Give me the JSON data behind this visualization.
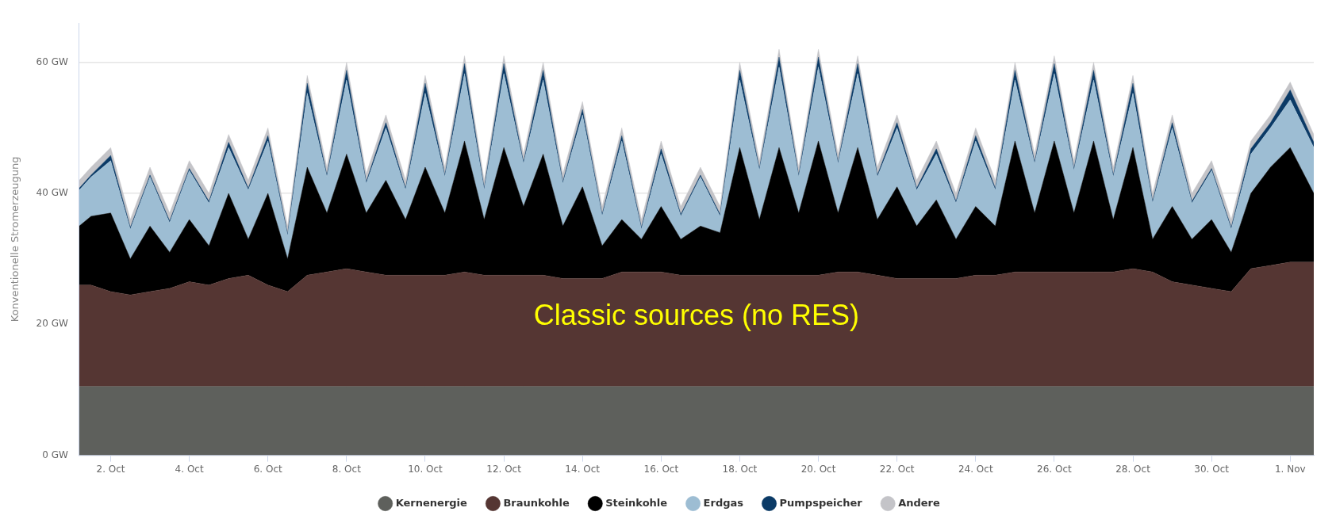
{
  "chart_data": {
    "type": "area",
    "stacked": true,
    "ylabel": "Konventionelle Stromerzeugung",
    "annotations": [
      "Classic sources (no RES)"
    ],
    "x": [
      "--10-01T04:48",
      "--10-01T12:00",
      "--10-02T00:00",
      "--10-02T12:00",
      "--10-03T00:00",
      "--10-03T12:00",
      "--10-04T00:00",
      "--10-04T12:00",
      "--10-05T00:00",
      "--10-05T12:00",
      "--10-06T00:00",
      "--10-06T12:00",
      "--10-07T00:00",
      "--10-07T12:00",
      "--10-08T00:00",
      "--10-08T12:00",
      "--10-09T00:00",
      "--10-09T12:00",
      "--10-10T00:00",
      "--10-10T12:00",
      "--10-11T00:00",
      "--10-11T12:00",
      "--10-12T00:00",
      "--10-12T12:00",
      "--10-13T00:00",
      "--10-13T12:00",
      "--10-14T00:00",
      "--10-14T12:00",
      "--10-15T00:00",
      "--10-15T12:00",
      "--10-16T00:00",
      "--10-16T12:00",
      "--10-17T00:00",
      "--10-17T12:00",
      "--10-18T00:00",
      "--10-18T12:00",
      "--10-19T00:00",
      "--10-19T12:00",
      "--10-20T00:00",
      "--10-20T12:00",
      "--10-21T00:00",
      "--10-21T12:00",
      "--10-22T00:00",
      "--10-22T12:00",
      "--10-23T00:00",
      "--10-23T12:00",
      "--10-24T00:00",
      "--10-24T12:00",
      "--10-25T00:00",
      "--10-25T12:00",
      "--10-26T00:00",
      "--10-26T12:00",
      "--10-27T00:00",
      "--10-27T12:00",
      "--10-28T00:00",
      "--10-28T12:00",
      "--10-29T00:00",
      "--10-29T12:00",
      "--10-30T00:00",
      "--10-30T12:00",
      "--10-31T00:00",
      "--10-31T12:00",
      "--11-01T00:00",
      "--11-01T14:24"
    ],
    "xlim": [
      "--10-01T04:48",
      "--11-01T14:24"
    ],
    "xticks": [
      {
        "value": "--10-02",
        "label": "2. Oct"
      },
      {
        "value": "--10-04",
        "label": "4. Oct"
      },
      {
        "value": "--10-06",
        "label": "6. Oct"
      },
      {
        "value": "--10-08",
        "label": "8. Oct"
      },
      {
        "value": "--10-10",
        "label": "10. Oct"
      },
      {
        "value": "--10-12",
        "label": "12. Oct"
      },
      {
        "value": "--10-14",
        "label": "14. Oct"
      },
      {
        "value": "--10-16",
        "label": "16. Oct"
      },
      {
        "value": "--10-18",
        "label": "18. Oct"
      },
      {
        "value": "--10-20",
        "label": "20. Oct"
      },
      {
        "value": "--10-22",
        "label": "22. Oct"
      },
      {
        "value": "--10-24",
        "label": "24. Oct"
      },
      {
        "value": "--10-26",
        "label": "26. Oct"
      },
      {
        "value": "--10-28",
        "label": "28. Oct"
      },
      {
        "value": "--10-30",
        "label": "30. Oct"
      },
      {
        "value": "--11-01",
        "label": "1. Nov"
      }
    ],
    "ylim": [
      0,
      66
    ],
    "yticks": [
      {
        "value": 0,
        "label": "0 GW"
      },
      {
        "value": 20,
        "label": "20 GW"
      },
      {
        "value": 40,
        "label": "40 GW"
      },
      {
        "value": 60,
        "label": "60 GW"
      }
    ],
    "grid": "y",
    "legend": "bottom",
    "marker": "none",
    "series": [
      {
        "name": "Kernenergie",
        "color": "#5e605c",
        "values": [
          10.5,
          10.5,
          10.5,
          10.5,
          10.5,
          10.5,
          10.5,
          10.5,
          10.5,
          10.5,
          10.5,
          10.5,
          10.5,
          10.5,
          10.5,
          10.5,
          10.5,
          10.5,
          10.5,
          10.5,
          10.5,
          10.5,
          10.5,
          10.5,
          10.5,
          10.5,
          10.5,
          10.5,
          10.5,
          10.5,
          10.5,
          10.5,
          10.5,
          10.5,
          10.5,
          10.5,
          10.5,
          10.5,
          10.5,
          10.5,
          10.5,
          10.5,
          10.5,
          10.5,
          10.5,
          10.5,
          10.5,
          10.5,
          10.5,
          10.5,
          10.5,
          10.5,
          10.5,
          10.5,
          10.5,
          10.5,
          10.5,
          10.5,
          10.5,
          10.5,
          10.5,
          10.5,
          10.5,
          10.5
        ]
      },
      {
        "name": "Braunkohle",
        "color": "#553633",
        "values": [
          15.5,
          15.5,
          14.5,
          14,
          14.5,
          15,
          16,
          15.5,
          16.5,
          17,
          15.5,
          14.5,
          17,
          17.5,
          18,
          17.5,
          17,
          17,
          17,
          17,
          17.5,
          17,
          17,
          17,
          17,
          16.5,
          16.5,
          16.5,
          17.5,
          17.5,
          17.5,
          17,
          17,
          17,
          17,
          17,
          17,
          17,
          17,
          17.5,
          17.5,
          17,
          16.5,
          16.5,
          16.5,
          16.5,
          17,
          17,
          17.5,
          17.5,
          17.5,
          17.5,
          17.5,
          17.5,
          18,
          17.5,
          16,
          15.5,
          15,
          14.5,
          18,
          18.5,
          19,
          19
        ]
      },
      {
        "name": "Steinkohle",
        "color": "#000000",
        "values": [
          9,
          10.5,
          12,
          5.5,
          10,
          5.5,
          9.5,
          6,
          13,
          5.5,
          14,
          5,
          16.5,
          9,
          17.5,
          9,
          14.5,
          8.5,
          16.5,
          9.5,
          20,
          8.5,
          19.5,
          10.5,
          18.5,
          8,
          14,
          5,
          8,
          5,
          10,
          5.5,
          7.5,
          6.5,
          19.5,
          8.5,
          19.5,
          9.5,
          20.5,
          9,
          19,
          8.5,
          14,
          8,
          12,
          6,
          10.5,
          7.5,
          20,
          9,
          20,
          9,
          20,
          8,
          18.5,
          5,
          11.5,
          7,
          10.5,
          6,
          11.5,
          15,
          17.5,
          10.5
        ]
      },
      {
        "name": "Erdgas",
        "color": "#9dbdd3",
        "values": [
          5.5,
          6,
          8,
          4.5,
          7.5,
          4.5,
          7.5,
          6.5,
          7,
          7.5,
          8,
          3.5,
          11.3,
          5.5,
          11.3,
          4.5,
          8,
          4.5,
          11.3,
          5.5,
          10.3,
          4.5,
          11.3,
          6.5,
          11.3,
          6.5,
          11,
          4.5,
          12,
          1.5,
          8,
          3.5,
          7.5,
          2.5,
          10.3,
          7.5,
          12.3,
          5.5,
          11.3,
          7.5,
          11.3,
          6.5,
          9,
          5.5,
          7,
          5.5,
          10,
          5.5,
          9.3,
          7.5,
          10.3,
          6.5,
          9.3,
          6.5,
          8.3,
          5.5,
          12,
          5.5,
          7.5,
          3.5,
          6,
          6,
          7.3,
          7
        ]
      },
      {
        "name": "Pumpspeicher",
        "color": "#0b3a66",
        "values": [
          0.3,
          0.3,
          0.8,
          0.3,
          0.3,
          0.3,
          0.3,
          0.3,
          0.8,
          0.3,
          0.8,
          0.3,
          1.5,
          0.3,
          1.5,
          0.3,
          0.8,
          0.3,
          1.5,
          0.3,
          1.5,
          0.3,
          1.5,
          0.3,
          1.5,
          0.3,
          0.8,
          0.3,
          0.8,
          0.3,
          0.8,
          0.3,
          0.3,
          0.3,
          1.5,
          0.3,
          1.5,
          0.3,
          1.5,
          0.3,
          1.5,
          0.3,
          0.8,
          0.3,
          0.8,
          0.3,
          0.8,
          0.3,
          1.5,
          0.3,
          1.5,
          0.3,
          1.5,
          0.3,
          1.5,
          0.3,
          0.8,
          0.3,
          0.3,
          0.3,
          0.8,
          0.8,
          1.5,
          0.8
        ]
      },
      {
        "name": "Andere",
        "color": "#c4c4c8",
        "values": [
          1.2,
          1.2,
          1.2,
          1.2,
          1.2,
          1.2,
          1.2,
          1.2,
          1.2,
          1.2,
          1.2,
          1.2,
          1.2,
          1.2,
          1.2,
          1.2,
          1.2,
          1.2,
          1.2,
          1.2,
          1.2,
          1.2,
          1.2,
          1.2,
          1.2,
          1.2,
          1.2,
          1.2,
          1.2,
          1.2,
          1.2,
          1.2,
          1.2,
          1.2,
          1.2,
          1.2,
          1.2,
          1.2,
          1.2,
          1.2,
          1.2,
          1.2,
          1.2,
          1.2,
          1.2,
          1.2,
          1.2,
          1.2,
          1.2,
          1.2,
          1.2,
          1.2,
          1.2,
          1.2,
          1.2,
          1.2,
          1.2,
          1.2,
          1.2,
          1.2,
          1.2,
          1.2,
          1.2,
          1.2
        ]
      }
    ]
  }
}
